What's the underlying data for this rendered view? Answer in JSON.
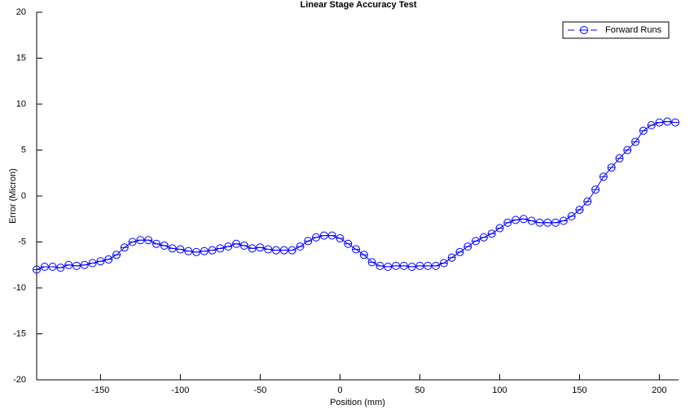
{
  "chart_data": {
    "type": "line",
    "title": "Linear Stage Accuracy Test",
    "xlabel": "Position (mm)",
    "ylabel": "Error (Micron)",
    "x": [
      -190,
      -185,
      -180,
      -175,
      -170,
      -165,
      -160,
      -155,
      -150,
      -145,
      -140,
      -135,
      -130,
      -125,
      -120,
      -115,
      -110,
      -105,
      -100,
      -95,
      -90,
      -85,
      -80,
      -75,
      -70,
      -65,
      -60,
      -55,
      -50,
      -45,
      -40,
      -35,
      -30,
      -25,
      -20,
      -15,
      -10,
      -5,
      0,
      5,
      10,
      15,
      20,
      25,
      30,
      35,
      40,
      45,
      50,
      55,
      60,
      65,
      70,
      75,
      80,
      85,
      90,
      95,
      100,
      105,
      110,
      115,
      120,
      125,
      130,
      135,
      140,
      145,
      150,
      155,
      160,
      165,
      170,
      175,
      180,
      185,
      190,
      195,
      200,
      205,
      210
    ],
    "series": [
      {
        "name": "Forward Runs",
        "color": "#0000ff",
        "values": [
          -8.0,
          -7.7,
          -7.7,
          -7.8,
          -7.5,
          -7.6,
          -7.5,
          -7.3,
          -7.1,
          -6.9,
          -6.4,
          -5.6,
          -5.0,
          -4.8,
          -4.8,
          -5.2,
          -5.4,
          -5.7,
          -5.8,
          -6.0,
          -6.1,
          -6.0,
          -5.9,
          -5.7,
          -5.5,
          -5.2,
          -5.4,
          -5.7,
          -5.6,
          -5.8,
          -5.9,
          -5.9,
          -5.9,
          -5.5,
          -4.9,
          -4.5,
          -4.3,
          -4.3,
          -4.6,
          -5.2,
          -5.8,
          -6.4,
          -7.2,
          -7.6,
          -7.7,
          -7.6,
          -7.6,
          -7.7,
          -7.6,
          -7.6,
          -7.6,
          -7.3,
          -6.7,
          -6.1,
          -5.5,
          -4.9,
          -4.5,
          -4.1,
          -3.5,
          -2.9,
          -2.6,
          -2.5,
          -2.7,
          -2.9,
          -2.9,
          -2.9,
          -2.7,
          -2.2,
          -1.5,
          -0.6,
          0.7,
          2.1,
          3.1,
          4.1,
          5.0,
          5.9,
          7.1,
          7.7,
          8.0,
          8.1,
          8.0
        ]
      }
    ],
    "xlim": [
      -190,
      212
    ],
    "ylim": [
      -20,
      20
    ],
    "xticks": [
      -150,
      -100,
      -50,
      0,
      50,
      100,
      150,
      200
    ],
    "yticks": [
      -20,
      -15,
      -10,
      -5,
      0,
      5,
      10,
      15,
      20
    ],
    "legend": "upper right"
  }
}
